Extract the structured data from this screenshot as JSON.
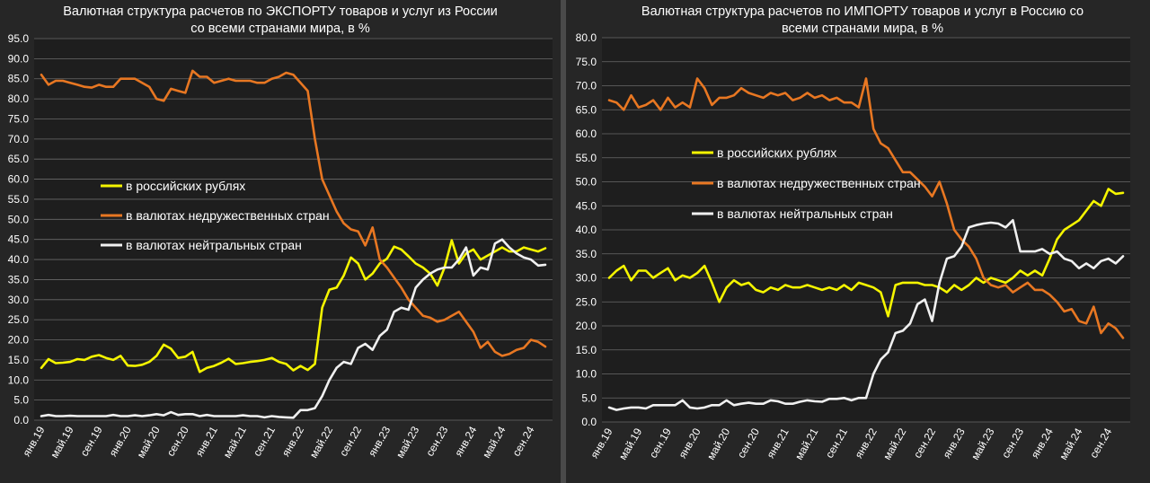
{
  "chart_data": [
    {
      "type": "line",
      "title": "Валютная структура расчетов по ЭКСПОРТУ товаров и услуг из России",
      "subtitle": "со всеми странами мира, в %",
      "ylim": [
        0,
        95
      ],
      "yticks": [
        "0.0",
        "5.0",
        "10.0",
        "15.0",
        "20.0",
        "25.0",
        "30.0",
        "35.0",
        "40.0",
        "45.0",
        "50.0",
        "55.0",
        "60.0",
        "65.0",
        "70.0",
        "75.0",
        "80.0",
        "85.0",
        "90.0",
        "95.0"
      ],
      "xticks": [
        "янв.19",
        "май.19",
        "сен.19",
        "янв.20",
        "май.20",
        "сен.20",
        "янв.21",
        "май.21",
        "сен.21",
        "янв.22",
        "май.22",
        "сен.22",
        "янв.23",
        "май.23",
        "сен.23",
        "янв.24",
        "май.24",
        "сен.24"
      ],
      "x": [
        "янв.19",
        "фев.19",
        "мар.19",
        "апр.19",
        "май.19",
        "июн.19",
        "июл.19",
        "авг.19",
        "сен.19",
        "окт.19",
        "ноя.19",
        "дек.19",
        "янв.20",
        "фев.20",
        "мар.20",
        "апр.20",
        "май.20",
        "июн.20",
        "июл.20",
        "авг.20",
        "сен.20",
        "окт.20",
        "ноя.20",
        "дек.20",
        "янв.21",
        "фев.21",
        "мар.21",
        "апр.21",
        "май.21",
        "июн.21",
        "июл.21",
        "авг.21",
        "сен.21",
        "окт.21",
        "ноя.21",
        "дек.21",
        "янв.22",
        "фев.22",
        "мар.22",
        "апр.22",
        "май.22",
        "июн.22",
        "июл.22",
        "авг.22",
        "сен.22",
        "окт.22",
        "ноя.22",
        "дек.22",
        "янв.23",
        "фев.23",
        "мар.23",
        "апр.23",
        "май.23",
        "июн.23",
        "июл.23",
        "авг.23",
        "сен.23",
        "окт.23",
        "ноя.23",
        "дек.23",
        "янв.24",
        "фев.24",
        "мар.24",
        "апр.24",
        "май.24",
        "июн.24",
        "июл.24",
        "авг.24",
        "сен.24",
        "окт.24",
        "ноя.24"
      ],
      "series": [
        {
          "name": "в российских рублях",
          "color": "#f5f500",
          "values": [
            13.0,
            15.2,
            14.2,
            14.3,
            14.5,
            15.2,
            15.0,
            15.8,
            16.2,
            15.5,
            15.0,
            16.0,
            13.6,
            13.5,
            13.8,
            14.5,
            16.0,
            18.8,
            17.8,
            15.5,
            15.8,
            17.0,
            12.0,
            13.0,
            13.5,
            14.3,
            15.3,
            14.0,
            14.2,
            14.5,
            14.7,
            15.0,
            15.5,
            14.5,
            14.0,
            12.4,
            13.5,
            12.5,
            14.0,
            28.0,
            32.5,
            33.0,
            36.0,
            40.5,
            39.0,
            35.0,
            36.5,
            39.0,
            40.2,
            43.2,
            42.5,
            40.8,
            39.0,
            38.0,
            36.5,
            33.5,
            38.0,
            44.8,
            39.0,
            41.5,
            42.5,
            40.0,
            41.0,
            42.0,
            43.0,
            42.0,
            42.0,
            43.0,
            42.5,
            42.0,
            42.8
          ]
        },
        {
          "name": "в валютах недружественных стран",
          "color": "#e87722",
          "values": [
            86.0,
            83.5,
            84.5,
            84.5,
            84.0,
            83.5,
            83.0,
            82.8,
            83.5,
            83.0,
            83.0,
            85.0,
            85.0,
            85.0,
            84.0,
            83.0,
            80.0,
            79.5,
            82.5,
            82.0,
            81.5,
            87.0,
            85.5,
            85.5,
            84.0,
            84.5,
            85.0,
            84.5,
            84.5,
            84.5,
            84.0,
            84.0,
            85.0,
            85.5,
            86.5,
            86.0,
            84.0,
            82.0,
            70.0,
            60.0,
            56.0,
            52.0,
            49.0,
            47.5,
            47.0,
            43.5,
            48.0,
            40.0,
            38.0,
            35.5,
            33.0,
            30.0,
            28.0,
            26.0,
            25.5,
            24.5,
            25.0,
            26.0,
            27.0,
            24.5,
            22.0,
            18.0,
            19.5,
            17.0,
            16.0,
            16.5,
            17.5,
            18.0,
            20.0,
            19.5,
            18.3
          ]
        },
        {
          "name": "в валютах нейтральных стран",
          "color": "#f0f0f0",
          "values": [
            1.0,
            1.3,
            1.0,
            1.0,
            1.1,
            1.0,
            1.0,
            1.0,
            1.0,
            1.0,
            1.3,
            1.0,
            1.0,
            1.2,
            1.0,
            1.2,
            1.5,
            1.2,
            2.0,
            1.3,
            1.5,
            1.5,
            1.0,
            1.3,
            1.0,
            1.0,
            1.0,
            1.0,
            1.2,
            1.0,
            1.0,
            0.7,
            1.0,
            0.8,
            0.7,
            0.6,
            2.5,
            2.5,
            3.0,
            6.0,
            10.0,
            13.0,
            14.5,
            14.0,
            18.0,
            19.0,
            17.5,
            21.0,
            22.5,
            27.0,
            28.0,
            27.5,
            33.0,
            35.0,
            36.5,
            37.5,
            38.0,
            38.0,
            40.0,
            43.0,
            36.0,
            38.0,
            37.5,
            44.0,
            45.0,
            43.0,
            41.5,
            40.5,
            40.0,
            38.5,
            38.7
          ]
        }
      ],
      "legend_position": "left-middle",
      "grid": true
    },
    {
      "type": "line",
      "title": "Валютная структура расчетов по ИМПОРТУ товаров и услуг в Россию со",
      "subtitle": "всеми странами мира, в %",
      "ylim": [
        0,
        80
      ],
      "yticks": [
        "0.0",
        "5.0",
        "10.0",
        "15.0",
        "20.0",
        "25.0",
        "30.0",
        "35.0",
        "40.0",
        "45.0",
        "50.0",
        "55.0",
        "60.0",
        "65.0",
        "70.0",
        "75.0",
        "80.0"
      ],
      "xticks": [
        "янв.19",
        "май.19",
        "сен.19",
        "янв.20",
        "май.20",
        "сен.20",
        "янв.21",
        "май.21",
        "сен.21",
        "янв.22",
        "май.22",
        "сен.22",
        "янв.23",
        "май.23",
        "сен.23",
        "янв.24",
        "май.24",
        "сен.24"
      ],
      "x": [
        "янв.19",
        "фев.19",
        "мар.19",
        "апр.19",
        "май.19",
        "июн.19",
        "июл.19",
        "авг.19",
        "сен.19",
        "окт.19",
        "ноя.19",
        "дек.19",
        "янв.20",
        "фев.20",
        "мар.20",
        "апр.20",
        "май.20",
        "июн.20",
        "июл.20",
        "авг.20",
        "сен.20",
        "окт.20",
        "ноя.20",
        "дек.20",
        "янв.21",
        "фев.21",
        "мар.21",
        "апр.21",
        "май.21",
        "июн.21",
        "июл.21",
        "авг.21",
        "сен.21",
        "окт.21",
        "ноя.21",
        "дек.21",
        "янв.22",
        "фев.22",
        "мар.22",
        "апр.22",
        "май.22",
        "июн.22",
        "июл.22",
        "авг.22",
        "сен.22",
        "окт.22",
        "ноя.22",
        "дек.22",
        "янв.23",
        "фев.23",
        "мар.23",
        "апр.23",
        "май.23",
        "июн.23",
        "июл.23",
        "авг.23",
        "сен.23",
        "окт.23",
        "ноя.23",
        "дек.23",
        "янв.24",
        "фев.24",
        "мар.24",
        "апр.24",
        "май.24",
        "июн.24",
        "июл.24",
        "авг.24",
        "сен.24",
        "окт.24",
        "ноя.24"
      ],
      "series": [
        {
          "name": "в российских рублях",
          "color": "#f5f500",
          "values": [
            30.0,
            31.5,
            32.5,
            29.5,
            31.5,
            31.5,
            30.0,
            31.0,
            32.0,
            29.5,
            30.5,
            30.0,
            31.0,
            32.5,
            29.0,
            25.0,
            28.0,
            29.5,
            28.5,
            29.0,
            27.5,
            27.0,
            28.0,
            27.5,
            28.5,
            28.0,
            28.0,
            28.5,
            28.0,
            27.5,
            28.0,
            27.5,
            28.5,
            27.5,
            29.0,
            28.5,
            28.0,
            27.0,
            22.0,
            28.5,
            29.0,
            29.0,
            29.0,
            28.5,
            28.5,
            28.0,
            27.0,
            28.5,
            27.5,
            28.5,
            30.0,
            29.0,
            30.0,
            29.5,
            29.0,
            30.0,
            31.5,
            30.5,
            31.5,
            30.5,
            34.0,
            38.0,
            40.0,
            41.0,
            42.0,
            44.0,
            46.0,
            45.0,
            48.5,
            47.5,
            47.7
          ]
        },
        {
          "name": "в валютах недружественных стран",
          "color": "#e87722",
          "values": [
            67.0,
            66.5,
            65.0,
            68.0,
            65.5,
            66.0,
            67.0,
            65.0,
            67.5,
            65.5,
            66.5,
            65.5,
            71.5,
            69.5,
            66.0,
            67.5,
            67.5,
            68.0,
            69.5,
            68.5,
            68.0,
            67.5,
            68.5,
            68.0,
            68.5,
            67.0,
            67.5,
            68.5,
            67.5,
            68.0,
            67.0,
            67.5,
            66.5,
            66.5,
            65.5,
            71.5,
            61.0,
            58.0,
            57.0,
            54.5,
            52.0,
            52.0,
            50.5,
            49.0,
            47.0,
            50.0,
            45.5,
            40.0,
            38.0,
            36.5,
            34.0,
            30.0,
            28.5,
            28.0,
            28.5,
            27.0,
            28.0,
            29.0,
            27.5,
            27.5,
            26.5,
            25.0,
            23.0,
            23.5,
            21.0,
            20.5,
            24.0,
            18.5,
            20.5,
            19.5,
            17.5
          ]
        },
        {
          "name": "в валютах нейтральных стран",
          "color": "#f0f0f0",
          "values": [
            3.0,
            2.5,
            2.8,
            3.0,
            3.0,
            2.8,
            3.5,
            3.5,
            3.5,
            3.5,
            4.5,
            3.0,
            2.8,
            3.0,
            3.5,
            3.5,
            4.5,
            3.5,
            3.8,
            4.0,
            3.8,
            3.8,
            4.5,
            4.3,
            3.8,
            3.8,
            4.2,
            4.5,
            4.3,
            4.2,
            4.8,
            4.8,
            5.0,
            4.5,
            5.0,
            5.0,
            10.0,
            13.0,
            14.5,
            18.5,
            19.0,
            20.5,
            24.5,
            25.5,
            21.0,
            29.0,
            34.0,
            34.5,
            36.5,
            40.5,
            41.0,
            41.3,
            41.5,
            41.3,
            40.5,
            42.0,
            35.5,
            35.5,
            35.5,
            36.0,
            35.0,
            35.5,
            34.0,
            33.5,
            32.0,
            33.0,
            32.0,
            33.5,
            34.0,
            33.0,
            34.5
          ]
        }
      ],
      "legend_position": "left-middle",
      "grid": true
    }
  ]
}
